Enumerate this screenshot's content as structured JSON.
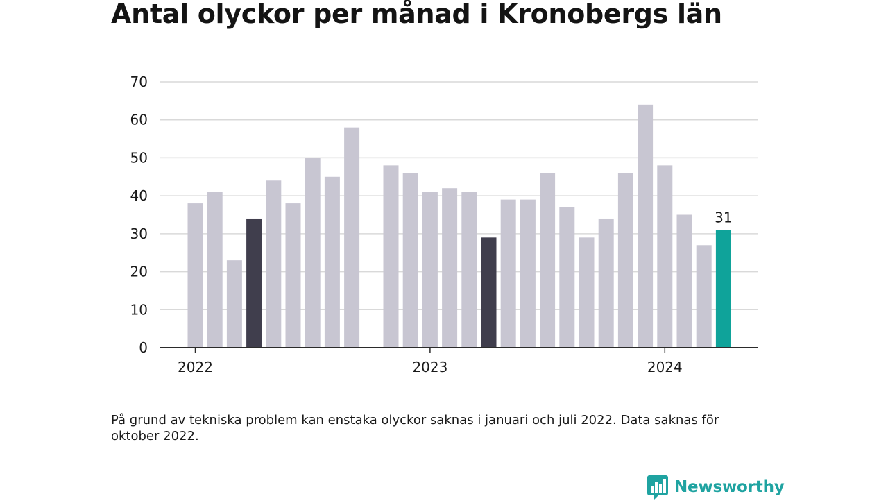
{
  "title": "Antal olyckor per månad i Kronobergs län",
  "note": "På grund av tekniska problem kan enstaka olyckor saknas i januari och juli 2022. Data saknas för oktober 2022.",
  "brand": {
    "name": "Newsworthy",
    "icon": "newsworthy-logo-icon"
  },
  "colors": {
    "default": "#c8c6d2",
    "flagged": "#403e4d",
    "latest": "#0fa39a",
    "grid": "#d9d9d9",
    "axis": "#2b2b2b",
    "text": "#1a1a1a"
  },
  "chart_data": {
    "type": "bar",
    "xlabel": "",
    "ylabel": "",
    "ylim": [
      0,
      70
    ],
    "yticks": [
      0,
      10,
      20,
      30,
      40,
      50,
      60,
      70
    ],
    "grid": true,
    "year_ticks": [
      {
        "label": "2022",
        "index": 0
      },
      {
        "label": "2023",
        "index": 12
      },
      {
        "label": "2024",
        "index": 24
      }
    ],
    "categories": [
      "2022-01",
      "2022-02",
      "2022-03",
      "2022-04",
      "2022-05",
      "2022-06",
      "2022-07",
      "2022-08",
      "2022-09",
      "2022-10",
      "2022-11",
      "2022-12",
      "2023-01",
      "2023-02",
      "2023-03",
      "2023-04",
      "2023-05",
      "2023-06",
      "2023-07",
      "2023-08",
      "2023-09",
      "2023-10",
      "2023-11",
      "2023-12",
      "2024-01",
      "2024-02",
      "2024-03",
      "2024-04"
    ],
    "values": [
      38,
      41,
      23,
      34,
      44,
      38,
      50,
      45,
      58,
      null,
      48,
      46,
      41,
      42,
      41,
      29,
      39,
      39,
      46,
      37,
      29,
      34,
      46,
      64,
      48,
      35,
      27,
      31
    ],
    "highlight": {
      "flagged": [
        3,
        15
      ],
      "latest": 27
    },
    "data_labels": [
      {
        "index": 27,
        "text": "31"
      }
    ]
  }
}
